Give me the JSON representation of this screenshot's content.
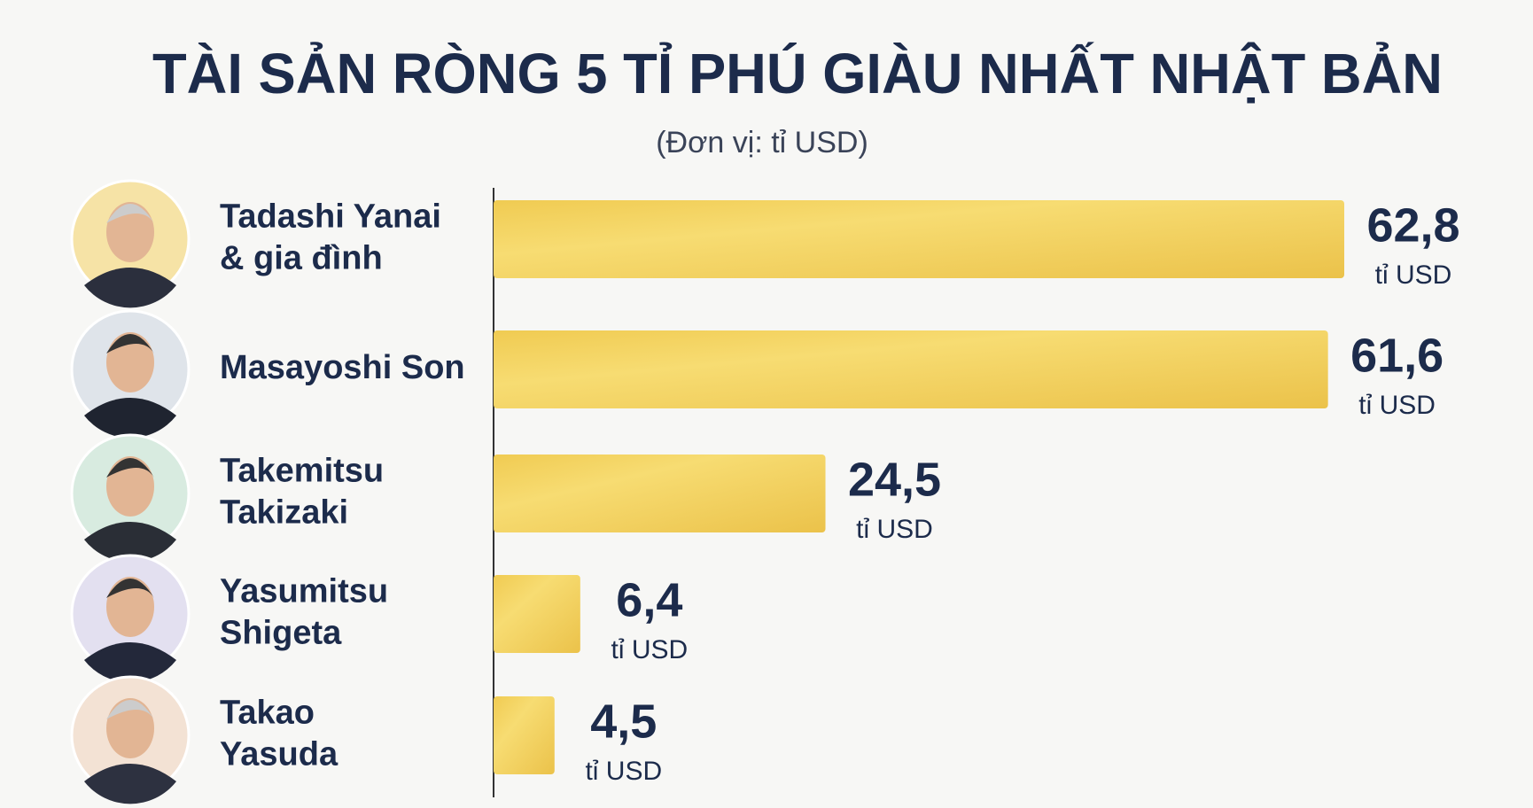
{
  "chart_data": {
    "type": "bar",
    "title": "TÀI SẢN RÒNG 5 TỈ PHÚ GIÀU NHẤT NHẬT BẢN",
    "subtitle": "(Đơn vị: tỉ USD)",
    "categories": [
      [
        "Tadashi Yanai",
        "& gia đình"
      ],
      [
        "Masayoshi Son"
      ],
      [
        "Takemitsu",
        "Takizaki"
      ],
      [
        "Yasumitsu",
        "Shigeta"
      ],
      [
        "Takao",
        "Yasuda"
      ]
    ],
    "values": [
      62.8,
      61.6,
      24.5,
      6.4,
      4.5
    ],
    "value_labels": [
      "62,8",
      "61,6",
      "24,5",
      "6,4",
      "4,5"
    ],
    "unit_label": "tỉ USD",
    "color": "#f3cf5c"
  }
}
